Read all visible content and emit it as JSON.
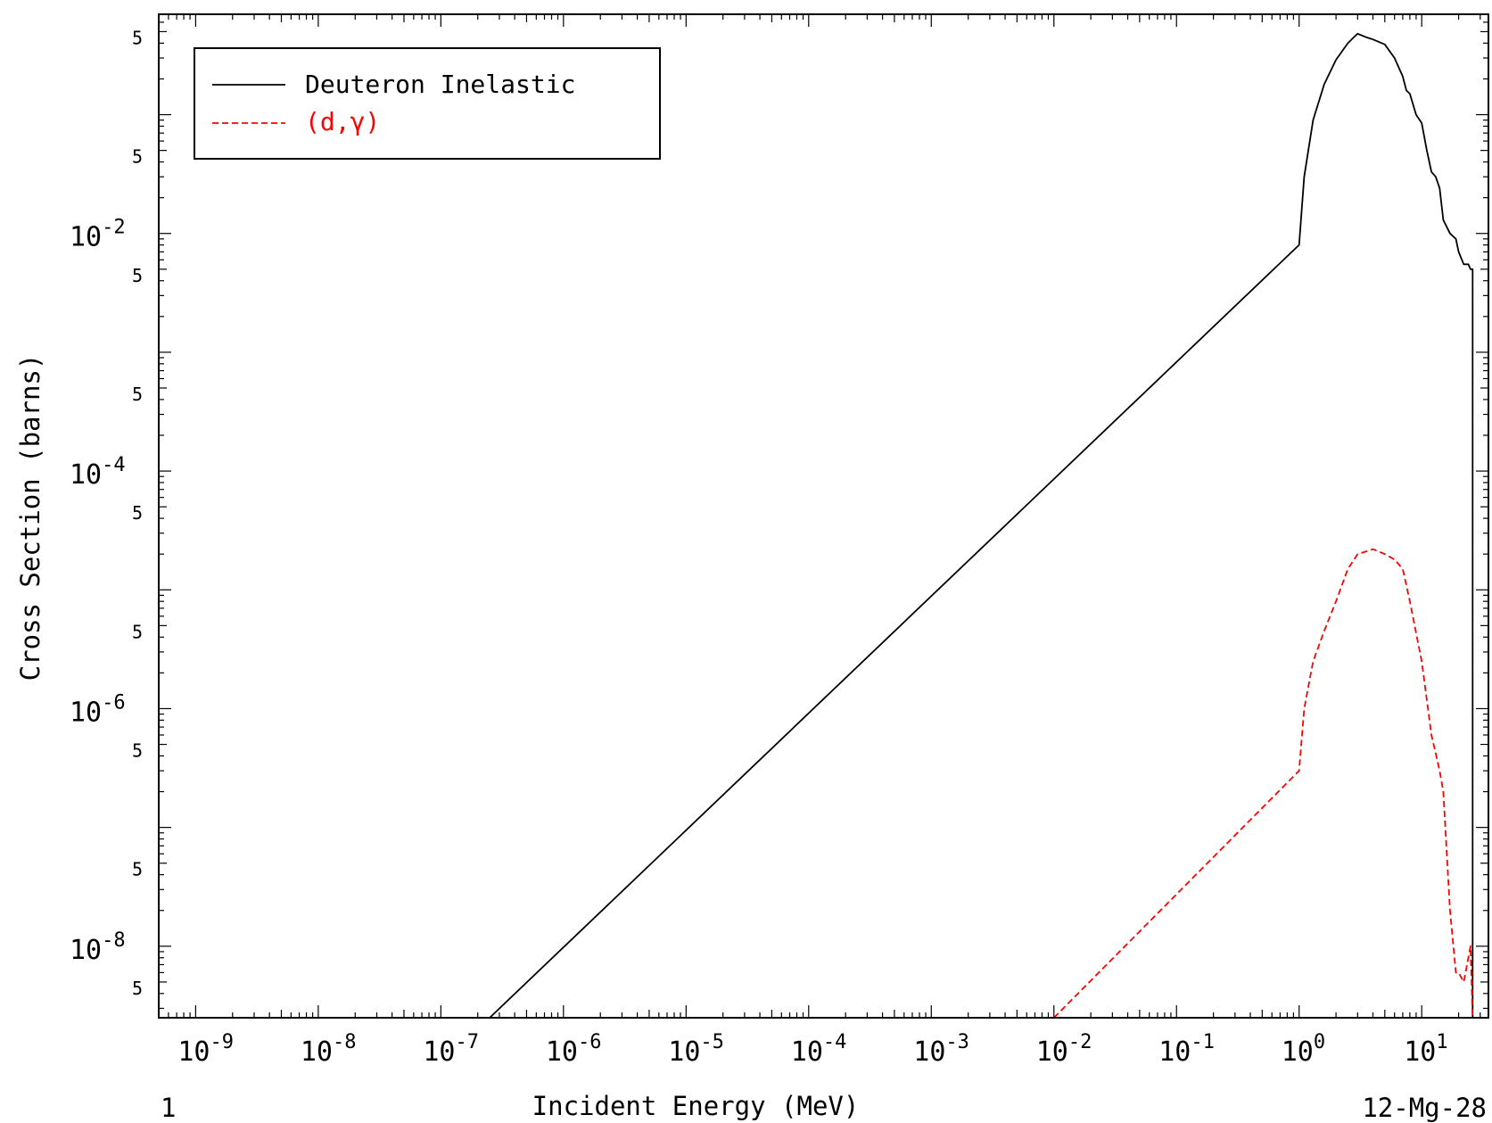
{
  "chart_data": {
    "type": "line",
    "title": "",
    "xlabel": "Incident Energy (MeV)",
    "ylabel": "Cross Section (barns)",
    "x_scale": "log",
    "y_scale": "log",
    "xlim": [
      5e-10,
      35
    ],
    "ylim": [
      2.5e-09,
      0.7
    ],
    "x_ticks": [
      "10^-9",
      "10^-8",
      "10^-7",
      "10^-6",
      "10^-5",
      "10^-4",
      "10^-3",
      "10^-2",
      "10^-1",
      "10^0",
      "10^1"
    ],
    "y_ticks": [
      "10^-2",
      "10^-4",
      "10^-6",
      "10^-8"
    ],
    "minor_tick_label": "5",
    "footer_left": "1",
    "footer_right": "12-Mg-28",
    "grid": false,
    "legend_position": "top-left",
    "series": [
      {
        "name": "Deuteron Inelastic",
        "color": "#000000",
        "style": "solid",
        "points": [
          [
            2.5e-07,
            2.5e-09
          ],
          [
            1.0,
            0.008
          ],
          [
            1.1,
            0.03
          ],
          [
            1.3,
            0.09
          ],
          [
            1.6,
            0.18
          ],
          [
            2.0,
            0.29
          ],
          [
            2.5,
            0.4
          ],
          [
            2.8,
            0.45
          ],
          [
            3.0,
            0.48
          ],
          [
            3.5,
            0.45
          ],
          [
            4.0,
            0.43
          ],
          [
            5.0,
            0.39
          ],
          [
            6.0,
            0.3
          ],
          [
            7.0,
            0.21
          ],
          [
            7.5,
            0.16
          ],
          [
            8.0,
            0.15
          ],
          [
            9.0,
            0.1
          ],
          [
            10.0,
            0.085
          ],
          [
            11.0,
            0.05
          ],
          [
            12.0,
            0.033
          ],
          [
            13.0,
            0.03
          ],
          [
            14.0,
            0.024
          ],
          [
            15.0,
            0.013
          ],
          [
            17.0,
            0.01
          ],
          [
            19.0,
            0.009
          ],
          [
            20.0,
            0.007
          ],
          [
            22.0,
            0.0055
          ],
          [
            24.0,
            0.0055
          ],
          [
            25.0,
            0.005
          ],
          [
            26.0,
            0.005
          ],
          [
            26.0,
            2.5e-09
          ]
        ]
      },
      {
        "name": "(d,γ)",
        "color": "#ff0000",
        "style": "dashed",
        "points": [
          [
            0.01,
            2.5e-09
          ],
          [
            1.0,
            3e-07
          ],
          [
            1.1,
            1e-06
          ],
          [
            1.3,
            2.5e-06
          ],
          [
            1.6,
            4.5e-06
          ],
          [
            2.0,
            8e-06
          ],
          [
            2.5,
            1.5e-05
          ],
          [
            3.0,
            2e-05
          ],
          [
            3.5,
            2.1e-05
          ],
          [
            4.0,
            2.2e-05
          ],
          [
            5.0,
            2e-05
          ],
          [
            6.0,
            1.8e-05
          ],
          [
            7.0,
            1.5e-05
          ],
          [
            8.0,
            8e-06
          ],
          [
            10.0,
            2.5e-06
          ],
          [
            12.0,
            6e-07
          ],
          [
            14.0,
            3e-07
          ],
          [
            15.0,
            2e-07
          ],
          [
            17.0,
            2e-08
          ],
          [
            19.0,
            6e-09
          ],
          [
            20.0,
            6e-09
          ],
          [
            22.0,
            5e-09
          ],
          [
            24.0,
            8e-09
          ],
          [
            25.0,
            1e-08
          ],
          [
            26.0,
            2.5e-09
          ]
        ]
      }
    ]
  }
}
